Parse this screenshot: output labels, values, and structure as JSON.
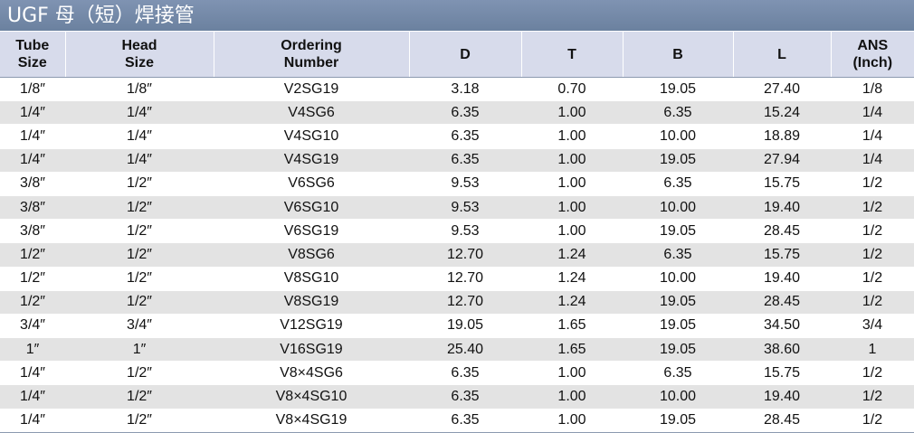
{
  "title": "UGF 母（短）焊接管",
  "headers": {
    "tube_size": [
      "Tube",
      "Size"
    ],
    "head_size": [
      "Head",
      "Size"
    ],
    "ordering_number": [
      "Ordering",
      "Number"
    ],
    "d": "D",
    "t": "T",
    "b": "B",
    "l": "L",
    "ans": [
      "ANS",
      "(Inch)"
    ]
  },
  "rows": [
    [
      "1/8″",
      "1/8″",
      "V2SG19",
      "3.18",
      "0.70",
      "19.05",
      "27.40",
      "1/8"
    ],
    [
      "1/4″",
      "1/4″",
      "V4SG6",
      "6.35",
      "1.00",
      "6.35",
      "15.24",
      "1/4"
    ],
    [
      "1/4″",
      "1/4″",
      "V4SG10",
      "6.35",
      "1.00",
      "10.00",
      "18.89",
      "1/4"
    ],
    [
      "1/4″",
      "1/4″",
      "V4SG19",
      "6.35",
      "1.00",
      "19.05",
      "27.94",
      "1/4"
    ],
    [
      "3/8″",
      "1/2″",
      "V6SG6",
      "9.53",
      "1.00",
      "6.35",
      "15.75",
      "1/2"
    ],
    [
      "3/8″",
      "1/2″",
      "V6SG10",
      "9.53",
      "1.00",
      "10.00",
      "19.40",
      "1/2"
    ],
    [
      "3/8″",
      "1/2″",
      "V6SG19",
      "9.53",
      "1.00",
      "19.05",
      "28.45",
      "1/2"
    ],
    [
      "1/2″",
      "1/2″",
      "V8SG6",
      "12.70",
      "1.24",
      "6.35",
      "15.75",
      "1/2"
    ],
    [
      "1/2″",
      "1/2″",
      "V8SG10",
      "12.70",
      "1.24",
      "10.00",
      "19.40",
      "1/2"
    ],
    [
      "1/2″",
      "1/2″",
      "V8SG19",
      "12.70",
      "1.24",
      "19.05",
      "28.45",
      "1/2"
    ],
    [
      "3/4″",
      "3/4″",
      "V12SG19",
      "19.05",
      "1.65",
      "19.05",
      "34.50",
      "3/4"
    ],
    [
      "1″",
      "1″",
      "V16SG19",
      "25.40",
      "1.65",
      "19.05",
      "38.60",
      "1"
    ],
    [
      "1/4″",
      "1/2″",
      "V8×4SG6",
      "6.35",
      "1.00",
      "6.35",
      "15.75",
      "1/2"
    ],
    [
      "1/4″",
      "1/2″",
      "V8×4SG10",
      "6.35",
      "1.00",
      "10.00",
      "19.40",
      "1/2"
    ],
    [
      "1/4″",
      "1/2″",
      "V8×4SG19",
      "6.35",
      "1.00",
      "19.05",
      "28.45",
      "1/2"
    ]
  ]
}
